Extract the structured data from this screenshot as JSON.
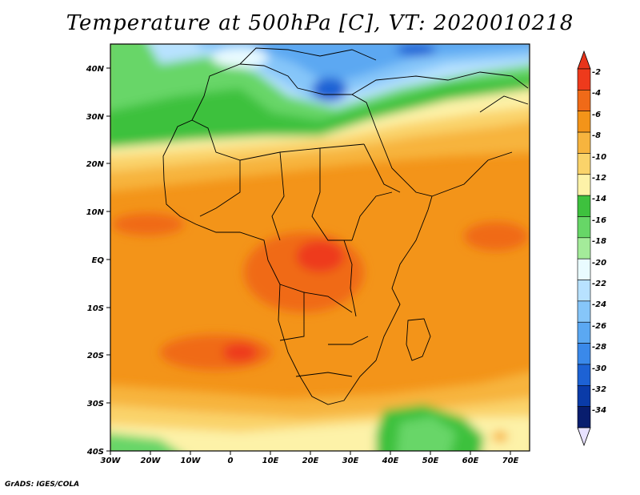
{
  "title": "Temperature at 500hPa [C], VT: 2020010218",
  "credit": "GrADS: IGES/COLA",
  "map": {
    "x_ticks": [
      "30W",
      "20W",
      "10W",
      "0",
      "10E",
      "20E",
      "30E",
      "40E",
      "50E",
      "60E",
      "70E"
    ],
    "y_ticks": [
      "40N",
      "30N",
      "20N",
      "10N",
      "EQ",
      "10S",
      "20S",
      "30S",
      "40S"
    ]
  },
  "colorbar": {
    "levels": [
      "-2",
      "-4",
      "-6",
      "-8",
      "-10",
      "-12",
      "-14",
      "-16",
      "-18",
      "-20",
      "-22",
      "-24",
      "-26",
      "-28",
      "-30",
      "-32",
      "-34"
    ],
    "colors": [
      "#ee3a1c",
      "#f06a18",
      "#f39419",
      "#f7b43e",
      "#fad36a",
      "#fdf2a8",
      "#3ec13e",
      "#67d667",
      "#a4eb9a",
      "#e9fbff",
      "#b8e2ff",
      "#86c6f9",
      "#5ba8f2",
      "#3a89ea",
      "#1d62d4",
      "#0a3ba8",
      "#081d6e"
    ],
    "over_color": "#e8341b",
    "under_color": "#e8e2ff"
  }
}
